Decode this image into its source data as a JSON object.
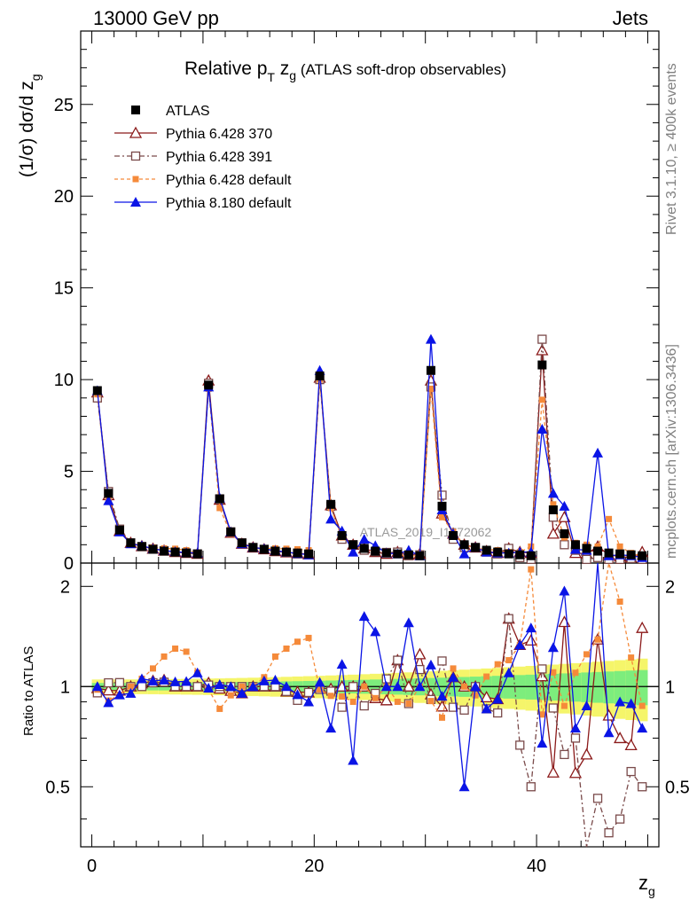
{
  "header": {
    "left": "13000 GeV pp",
    "right": "Jets"
  },
  "side": {
    "rivet": "Rivet 3.1.10, ≥ 400k events",
    "site": "mcplots.cern.ch [arXiv:1306.3436]"
  },
  "colors": {
    "atlas": "#000000",
    "p370": "#8b1a1a",
    "p391": "#7a4a4a",
    "p6def": "#f58a3a",
    "p8def": "#0a14e6",
    "band_inner": "#7ded7d",
    "band_outer": "#f5f56a"
  },
  "chart_data": {
    "type": "line",
    "title_main": "Relative p",
    "title_sub": "T",
    "title_rest": " z",
    "title_sub2": "g",
    "title_tail": " (ATLAS soft-drop observables)",
    "ylabel": "(1/σ) dσ/d z",
    "ylabel_sub": "g",
    "xlabel": "z",
    "xlabel_sub": "g",
    "ratio_ylabel": "Ratio to ATLAS",
    "watermark": "ATLAS_2019_I1772062",
    "xlim": [
      -1,
      51
    ],
    "ylim": [
      0,
      29
    ],
    "ratio_ylim": [
      0.33,
      2.35
    ],
    "x_ticks": [
      "0",
      "20",
      "40"
    ],
    "x_tick_values": [
      0,
      20,
      40
    ],
    "y_ticks": [
      "0",
      "5",
      "10",
      "15",
      "20",
      "25"
    ],
    "y_tick_values": [
      0,
      5,
      10,
      15,
      20,
      25
    ],
    "ratio_ticks": [
      "0.5",
      "1",
      "2"
    ],
    "ratio_tick_values": [
      0.5,
      1,
      2
    ],
    "x": [
      0.5,
      1.5,
      2.5,
      3.5,
      4.5,
      5.5,
      6.5,
      7.5,
      8.5,
      9.5,
      10.5,
      11.5,
      12.5,
      13.5,
      14.5,
      15.5,
      16.5,
      17.5,
      18.5,
      19.5,
      20.5,
      21.5,
      22.5,
      23.5,
      24.5,
      25.5,
      26.5,
      27.5,
      28.5,
      29.5,
      30.5,
      31.5,
      32.5,
      33.5,
      34.5,
      35.5,
      36.5,
      37.5,
      38.5,
      39.5,
      40.5,
      41.5,
      42.5,
      43.5,
      44.5,
      45.5,
      46.5,
      47.5,
      48.5,
      49.5
    ],
    "legend": {
      "placement": "top-left",
      "entries": [
        "ATLAS",
        "Pythia 6.428 370",
        "Pythia 6.428 391",
        "Pythia 6.428 default",
        "Pythia 8.180 default"
      ]
    },
    "series": [
      {
        "name": "ATLAS",
        "marker": "square-filled",
        "color": "#000000",
        "values": [
          9.4,
          3.8,
          1.8,
          1.1,
          0.9,
          0.75,
          0.65,
          0.6,
          0.55,
          0.5,
          9.7,
          3.5,
          1.7,
          1.1,
          0.85,
          0.75,
          0.65,
          0.6,
          0.55,
          0.5,
          10.2,
          3.2,
          1.5,
          1.0,
          0.8,
          0.65,
          0.55,
          0.5,
          0.45,
          0.4,
          10.5,
          3.1,
          1.5,
          1.0,
          0.85,
          0.7,
          0.6,
          0.5,
          0.45,
          0.4,
          10.8,
          2.9,
          1.6,
          1.0,
          0.8,
          0.65,
          0.55,
          0.5,
          0.45,
          0.4
        ]
      },
      {
        "name": "Pythia 6.428 370",
        "marker": "triangle-open",
        "color": "#8b1a1a",
        "values": [
          9.3,
          3.7,
          1.75,
          1.1,
          0.92,
          0.78,
          0.68,
          0.6,
          0.55,
          0.5,
          9.95,
          3.45,
          1.65,
          1.05,
          0.85,
          0.75,
          0.65,
          0.58,
          0.53,
          0.48,
          10.1,
          3.15,
          1.5,
          1.0,
          0.8,
          0.6,
          0.5,
          0.6,
          0.45,
          0.5,
          9.95,
          2.7,
          1.6,
          1.0,
          0.85,
          0.65,
          0.55,
          0.8,
          0.6,
          0.55,
          11.6,
          1.6,
          2.5,
          0.55,
          0.5,
          0.9,
          0.45,
          0.35,
          0.3,
          0.6
        ]
      },
      {
        "name": "Pythia 6.428 391",
        "marker": "square-open",
        "color": "#7a4a4a",
        "values": [
          9.0,
          3.9,
          1.85,
          1.1,
          0.9,
          0.77,
          0.67,
          0.6,
          0.55,
          0.5,
          9.8,
          3.5,
          1.7,
          1.1,
          0.85,
          0.75,
          0.65,
          0.58,
          0.5,
          0.48,
          10.0,
          3.1,
          1.3,
          1.0,
          0.7,
          0.62,
          0.58,
          0.6,
          0.4,
          0.45,
          9.6,
          3.7,
          1.3,
          0.85,
          0.85,
          0.6,
          0.5,
          0.8,
          0.3,
          0.2,
          12.2,
          2.5,
          1.0,
          0.7,
          0.2,
          0.3,
          0.2,
          0.2,
          0.25,
          0.2
        ]
      },
      {
        "name": "Pythia 6.428 default",
        "marker": "square-filled-small",
        "color": "#f58a3a",
        "values": [
          9.2,
          3.45,
          1.7,
          1.1,
          0.95,
          0.85,
          0.8,
          0.78,
          0.7,
          0.55,
          9.5,
          3.0,
          1.6,
          1.1,
          0.85,
          0.8,
          0.8,
          0.78,
          0.75,
          0.7,
          10.0,
          3.0,
          1.4,
          0.9,
          0.8,
          0.6,
          0.55,
          0.45,
          0.4,
          0.4,
          9.5,
          2.5,
          1.7,
          1.0,
          0.8,
          0.75,
          0.7,
          0.6,
          0.6,
          0.9,
          8.9,
          3.2,
          1.4,
          1.1,
          1.0,
          0.9,
          2.4,
          0.9,
          0.55,
          0.35
        ]
      },
      {
        "name": "Pythia 8.180 default",
        "marker": "triangle-filled",
        "color": "#0a14e6",
        "values": [
          9.4,
          3.4,
          1.7,
          1.05,
          0.95,
          0.78,
          0.68,
          0.62,
          0.57,
          0.55,
          9.6,
          3.55,
          1.7,
          1.05,
          0.85,
          0.78,
          0.68,
          0.6,
          0.52,
          0.45,
          10.5,
          2.4,
          1.75,
          0.6,
          1.3,
          0.95,
          0.55,
          0.5,
          0.7,
          0.4,
          12.2,
          2.9,
          1.6,
          0.5,
          0.85,
          0.6,
          0.55,
          0.55,
          0.6,
          0.6,
          7.3,
          3.8,
          3.1,
          0.75,
          0.7,
          6.0,
          0.4,
          0.45,
          0.4,
          0.3
        ]
      }
    ]
  }
}
